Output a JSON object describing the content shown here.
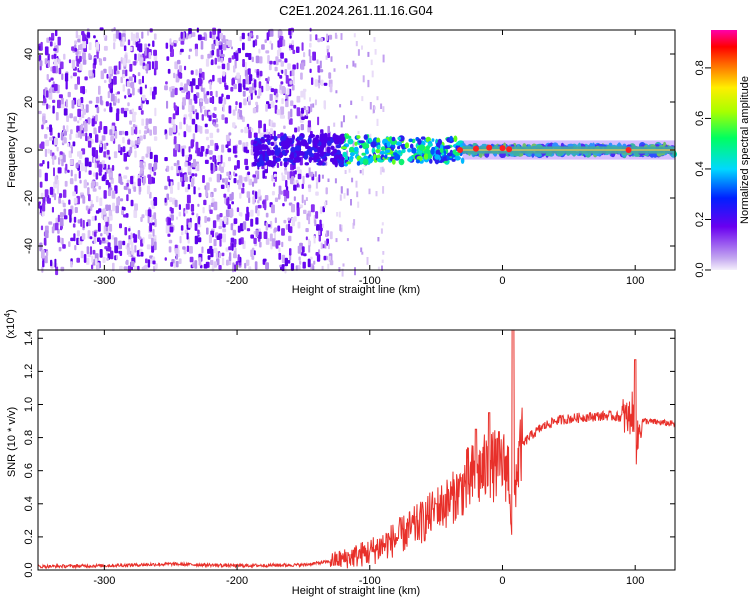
{
  "title": "C2E1.2024.261.11.16.G04",
  "chart_data": [
    {
      "type": "heatmap",
      "title": "",
      "xlabel": "Height of straight line (km)",
      "ylabel": "Frequency (Hz)",
      "xlim": [
        -350,
        130
      ],
      "ylim": [
        -50,
        50
      ],
      "xticks": [
        "-300",
        "-200",
        "-100",
        "0",
        "100"
      ],
      "yticks": [
        "-40",
        "-20",
        "0",
        "20",
        "40"
      ],
      "colorbar": {
        "label": "Normalized spectral amplitude",
        "ticks": [
          "0.0",
          "0.2",
          "0.4",
          "0.6",
          "0.8"
        ],
        "range": [
          0,
          0.95
        ],
        "colormap": "rainbow (white/lavender → purple → blue → cyan → green → yellow → orange → red → magenta)"
      },
      "features": {
        "noise_region_km": [
          -350,
          -140
        ],
        "narrowband_region_km": [
          -30,
          130
        ],
        "white_gap_km": [
          -262,
          -255
        ],
        "peak_frequency_hz": 0
      }
    },
    {
      "type": "line",
      "title": "",
      "xlabel": "Height of straight line (km)",
      "ylabel": "SNR (10 * v/v)",
      "y_multiplier": "(x10^4)",
      "xlim": [
        -350,
        130
      ],
      "ylim": [
        0,
        1.45
      ],
      "xticks": [
        "-300",
        "-200",
        "-100",
        "0",
        "100"
      ],
      "yticks": [
        "0.0",
        "0.2",
        "0.4",
        "0.6",
        "0.8",
        "1.0",
        "1.2",
        "1.4"
      ],
      "color": "#e8302a",
      "x": [
        -350,
        -300,
        -250,
        -200,
        -150,
        -120,
        -100,
        -80,
        -60,
        -50,
        -40,
        -30,
        -20,
        -10,
        0,
        5,
        8,
        10,
        15,
        20,
        30,
        40,
        60,
        80,
        90,
        95,
        98,
        100,
        105,
        130
      ],
      "y": [
        0.02,
        0.025,
        0.035,
        0.025,
        0.03,
        0.06,
        0.1,
        0.18,
        0.28,
        0.35,
        0.4,
        0.48,
        0.55,
        0.6,
        0.62,
        0.58,
        0.1,
        0.55,
        0.75,
        0.8,
        0.86,
        0.9,
        0.92,
        0.93,
        0.92,
        0.9,
        0.95,
        0.7,
        0.9,
        0.88
      ],
      "spikes": [
        {
          "x": -50,
          "y": 0.4
        },
        {
          "x": -20,
          "y": 0.85
        },
        {
          "x": -10,
          "y": 0.95
        },
        {
          "x": 8,
          "y": 1.45
        },
        {
          "x": 100,
          "y": 1.27
        }
      ]
    }
  ]
}
